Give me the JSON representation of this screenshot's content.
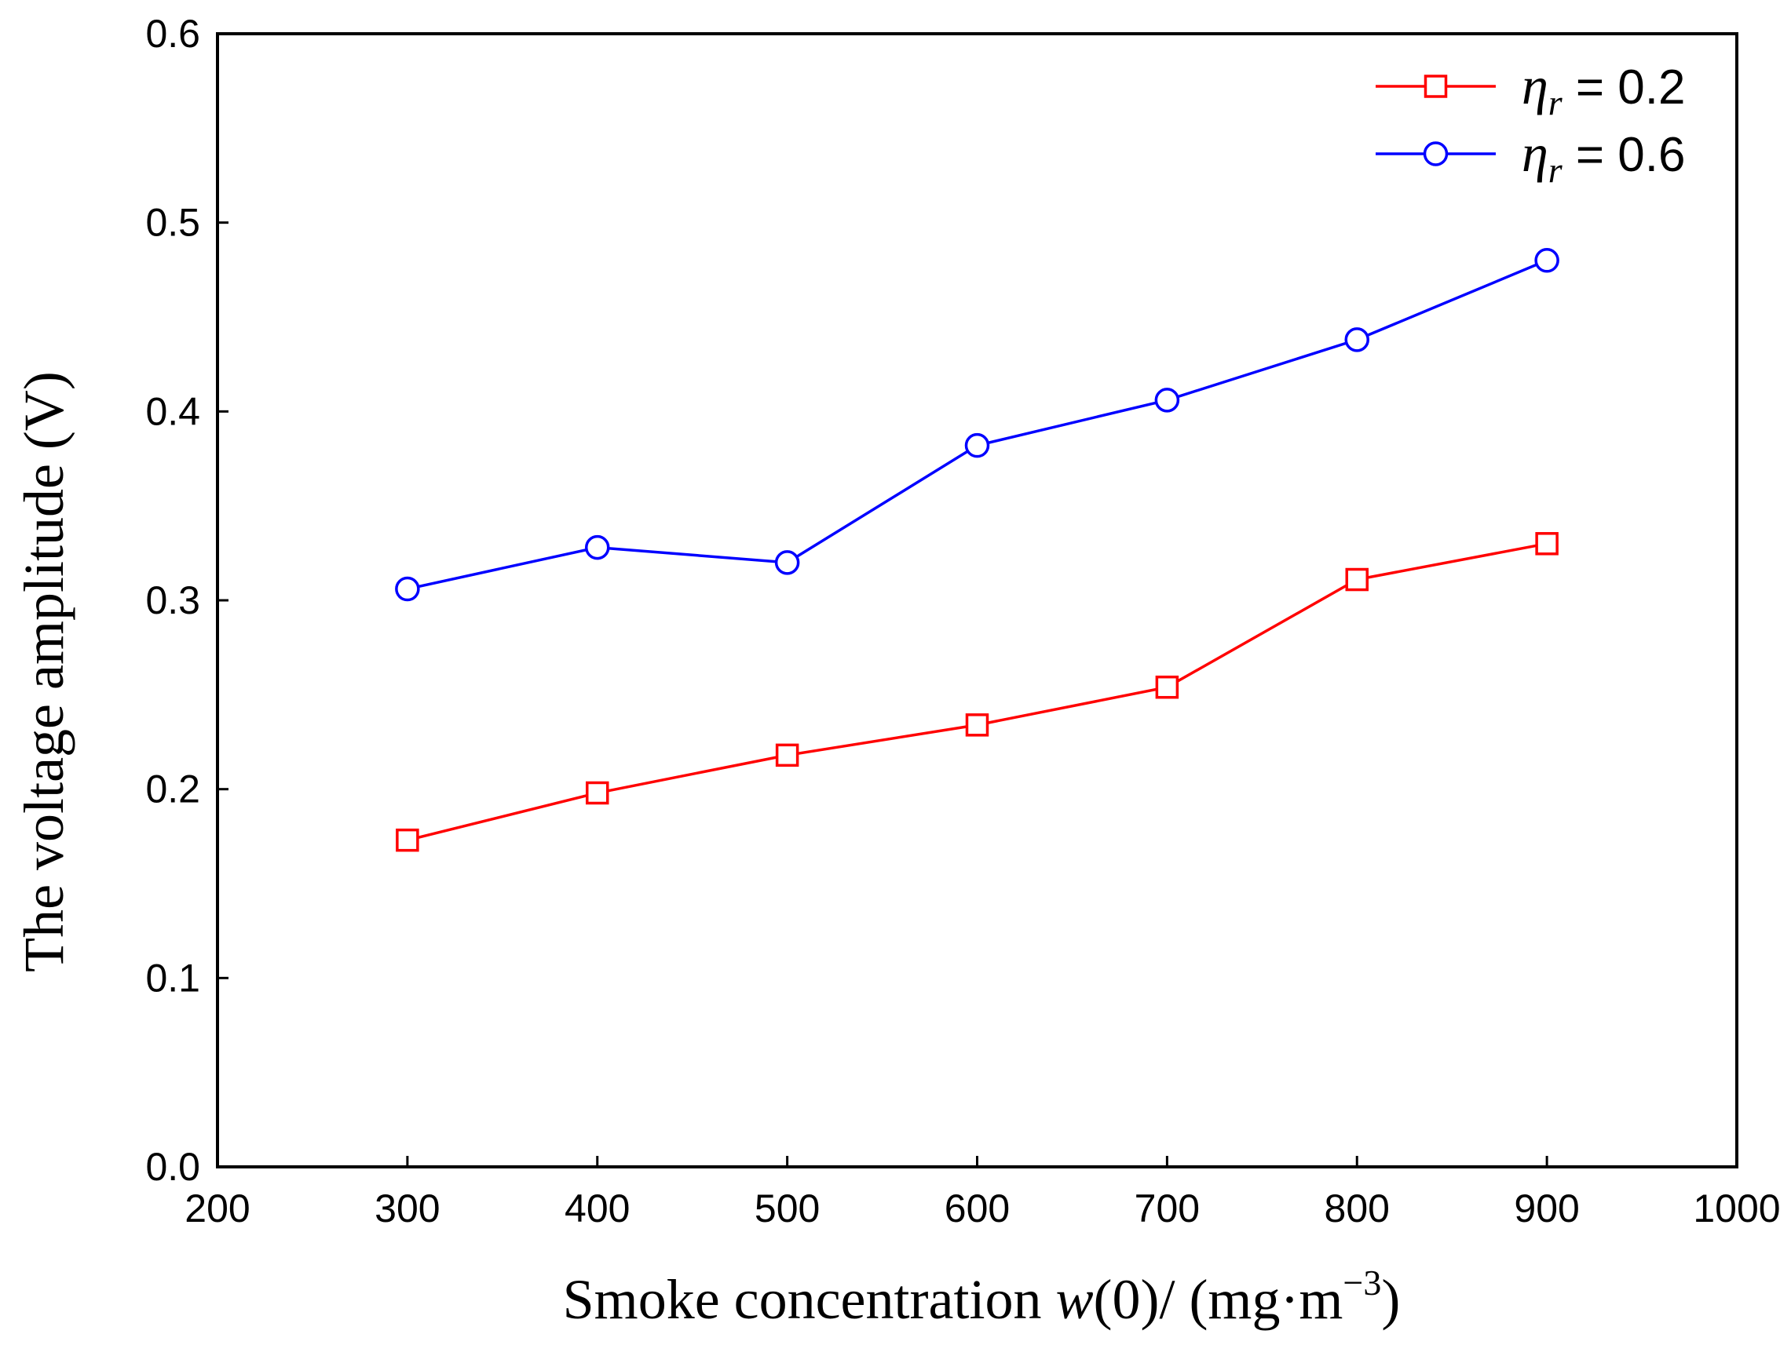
{
  "chart_data": {
    "type": "line",
    "xlabel": {
      "prefix": "Smoke concentration ",
      "var": "w",
      "middle": "(0)/ (mg·m",
      "sup": "−3",
      "suffix": ")"
    },
    "ylabel": "The voltage amplitude (V)",
    "xlim": [
      200,
      1000
    ],
    "ylim": [
      0.0,
      0.6
    ],
    "xticks": [
      "200",
      "300",
      "400",
      "500",
      "600",
      "700",
      "800",
      "900",
      "1000"
    ],
    "yticks": [
      "0.0",
      "0.1",
      "0.2",
      "0.3",
      "0.4",
      "0.5",
      "0.6"
    ],
    "x": [
      300,
      400,
      500,
      600,
      700,
      800,
      900
    ],
    "legend_position": "top-right",
    "grid": false,
    "series": [
      {
        "name": "η_r = 0.2",
        "symbol": "η",
        "subscript": "r",
        "value_text": " = 0.2",
        "color": "#ff0000",
        "marker": "square",
        "values": [
          0.173,
          0.198,
          0.218,
          0.234,
          0.254,
          0.311,
          0.33
        ]
      },
      {
        "name": "η_r = 0.6",
        "symbol": "η",
        "subscript": "r",
        "value_text": " = 0.6",
        "color": "#0000ff",
        "marker": "circle",
        "values": [
          0.306,
          0.328,
          0.32,
          0.382,
          0.406,
          0.438,
          0.48
        ]
      }
    ]
  }
}
